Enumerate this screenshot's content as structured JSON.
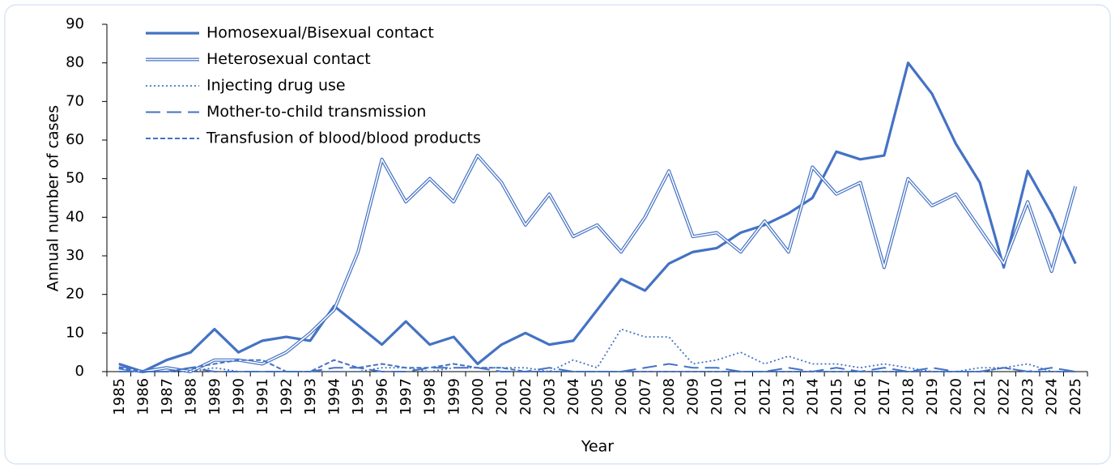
{
  "chart_data": {
    "type": "line",
    "y_label": "Annual number of cases",
    "x_label": "Year",
    "categories": [
      "1985",
      "1986",
      "1987",
      "1988",
      "1989",
      "1990",
      "1991",
      "1992",
      "1993",
      "1994",
      "1995",
      "1996",
      "1997",
      "1998",
      "1999",
      "2000",
      "2001",
      "2002",
      "2003",
      "2004",
      "2005",
      "2006",
      "2007",
      "2008",
      "2009",
      "2010",
      "2011",
      "2012",
      "2013",
      "2014",
      "2015",
      "2016",
      "2017",
      "2018",
      "2019",
      "2020",
      "2021",
      "2022",
      "2023",
      "2024",
      "2025"
    ],
    "series": [
      {
        "name": "Homosexual/Bisexual contact",
        "color": "#4472c4",
        "style": "solid",
        "values": [
          2,
          0,
          3,
          5,
          11,
          5,
          8,
          9,
          8,
          17,
          12,
          7,
          13,
          7,
          9,
          2,
          7,
          10,
          7,
          8,
          16,
          24,
          21,
          28,
          31,
          32,
          36,
          38,
          41,
          45,
          57,
          55,
          56,
          80,
          72,
          59,
          49,
          27,
          52,
          41,
          28
        ]
      },
      {
        "name": "Heterosexual contact",
        "color": "#4472c4",
        "style": "double",
        "values": [
          1,
          0,
          1,
          0,
          3,
          3,
          2,
          5,
          10,
          16,
          31,
          55,
          44,
          50,
          44,
          56,
          49,
          38,
          46,
          35,
          38,
          31,
          40,
          52,
          35,
          36,
          31,
          39,
          31,
          53,
          46,
          49,
          27,
          50,
          43,
          46,
          37,
          28,
          44,
          26,
          48
        ]
      },
      {
        "name": "Injecting drug use",
        "color": "#4472c4",
        "style": "dotted",
        "values": [
          0,
          0,
          0,
          0,
          1,
          0,
          0,
          0,
          0,
          0,
          0,
          1,
          1,
          0,
          1,
          1,
          1,
          1,
          0,
          3,
          1,
          11,
          9,
          9,
          2,
          3,
          5,
          2,
          4,
          2,
          2,
          1,
          2,
          1,
          0,
          0,
          1,
          1,
          2,
          0,
          0
        ]
      },
      {
        "name": "Mother-to-child transmission",
        "color": "#4472c4",
        "style": "long-dash",
        "values": [
          0,
          0,
          0,
          1,
          0,
          0,
          0,
          0,
          0,
          1,
          1,
          0,
          0,
          1,
          1,
          1,
          0,
          0,
          1,
          0,
          0,
          0,
          1,
          2,
          1,
          1,
          0,
          0,
          1,
          0,
          1,
          0,
          1,
          0,
          1,
          0,
          0,
          1,
          0,
          1,
          0
        ]
      },
      {
        "name": "Transfusion of blood/blood products",
        "color": "#4472c4",
        "style": "dash",
        "values": [
          1,
          0,
          0,
          1,
          2,
          3,
          3,
          0,
          0,
          3,
          1,
          2,
          1,
          1,
          2,
          1,
          1,
          0,
          0,
          0,
          0,
          0,
          0,
          0,
          0,
          0,
          0,
          0,
          0,
          0,
          0,
          0,
          0,
          0,
          0,
          0,
          0,
          1,
          0,
          0,
          0
        ]
      }
    ],
    "ylim": [
      0,
      90
    ],
    "yticks": [
      0,
      10,
      20,
      30,
      40,
      50,
      60,
      70,
      80,
      90
    ]
  }
}
